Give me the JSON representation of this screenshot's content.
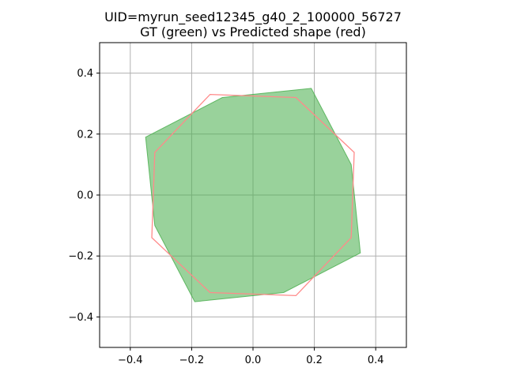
{
  "chart_data": {
    "type": "polygon-overlay",
    "title_line1": "UID=myrun_seed12345_g40_2_100000_56727",
    "title_line2": "GT (green) vs Predicted shape (red)",
    "xlim": [
      -0.5,
      0.5
    ],
    "ylim": [
      -0.5,
      0.5
    ],
    "xticks": [
      -0.4,
      -0.2,
      0.0,
      0.2,
      0.4
    ],
    "yticks": [
      -0.4,
      -0.2,
      0.0,
      0.2,
      0.4
    ],
    "xtick_labels": [
      "−0.4",
      "−0.2",
      "0.0",
      "0.2",
      "0.4"
    ],
    "ytick_labels": [
      "−0.4",
      "−0.2",
      "0.0",
      "0.2",
      "0.4"
    ],
    "grid": true,
    "series": [
      {
        "role": "ground-truth",
        "color": "#4caf50",
        "fill_opacity": 0.57,
        "points": [
          [
            -0.35,
            0.19
          ],
          [
            -0.1,
            0.32
          ],
          [
            0.19,
            0.35
          ],
          [
            0.32,
            0.1
          ],
          [
            0.35,
            -0.19
          ],
          [
            0.1,
            -0.32
          ],
          [
            -0.19,
            -0.35
          ],
          [
            -0.32,
            -0.1
          ]
        ]
      },
      {
        "role": "predicted",
        "color": "#ff8a8a",
        "fill_opacity": 0,
        "points": [
          [
            -0.14,
            0.33
          ],
          [
            0.14,
            0.32
          ],
          [
            0.33,
            0.14
          ],
          [
            0.32,
            -0.14
          ],
          [
            0.14,
            -0.33
          ],
          [
            -0.14,
            -0.32
          ],
          [
            -0.33,
            -0.14
          ],
          [
            -0.32,
            0.14
          ]
        ]
      }
    ]
  }
}
